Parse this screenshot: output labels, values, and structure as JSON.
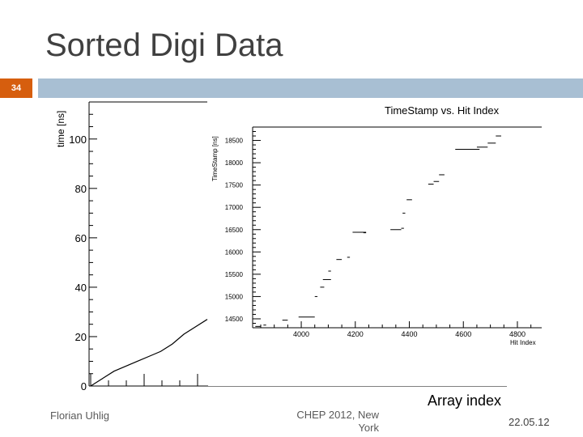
{
  "slide": {
    "title": "Sorted Digi Data",
    "number": "34",
    "footer_left": "Florian Uhlig",
    "footer_mid_line1": "CHEP 2012, New",
    "footer_mid_line2": "York",
    "footer_right": "22.05.12",
    "x_axis_title": "Array index",
    "accent_color": "#d65e0e",
    "bar_color": "#a8bfd3"
  },
  "chart_data": [
    {
      "type": "line",
      "ylabel": "time [ns]",
      "xlabel": "Array index",
      "y_ticks": [
        "0",
        "20",
        "40",
        "60",
        "80",
        "100"
      ],
      "ylim": [
        0,
        115
      ],
      "series": [
        {
          "x": [
            0,
            1,
            2,
            3,
            4,
            5,
            6,
            7,
            8,
            9,
            10
          ],
          "values": [
            0,
            3,
            6,
            8,
            10,
            12,
            14,
            17,
            21,
            24,
            27
          ]
        }
      ]
    },
    {
      "type": "scatter",
      "title": "TimeStamp vs. Hit Index",
      "xlabel": "Hit Index",
      "ylabel": "TimeStamp [ns]",
      "x_ticks": [
        "4000",
        "4200",
        "4400",
        "4600",
        "4800"
      ],
      "y_ticks": [
        "14500",
        "15000",
        "15500",
        "16000",
        "16500",
        "17000",
        "17500",
        "18000",
        "18500"
      ],
      "xlim": [
        3820,
        4890
      ],
      "ylim": [
        14300,
        18800
      ],
      "segments": [
        {
          "x0": 3830,
          "x1": 3850,
          "y": 14330
        },
        {
          "x0": 3860,
          "x1": 3870,
          "y": 14360
        },
        {
          "x0": 3930,
          "x1": 3950,
          "y": 14470
        },
        {
          "x0": 3990,
          "x1": 4050,
          "y": 14540
        },
        {
          "x0": 4050,
          "x1": 4060,
          "y": 15000
        },
        {
          "x0": 4070,
          "x1": 4085,
          "y": 15210
        },
        {
          "x0": 4080,
          "x1": 4110,
          "y": 15380
        },
        {
          "x0": 4100,
          "x1": 4110,
          "y": 15570
        },
        {
          "x0": 4130,
          "x1": 4150,
          "y": 15830
        },
        {
          "x0": 4170,
          "x1": 4180,
          "y": 15880
        },
        {
          "x0": 4190,
          "x1": 4240,
          "y": 16440
        },
        {
          "x0": 4230,
          "x1": 4240,
          "y": 16430
        },
        {
          "x0": 4330,
          "x1": 4370,
          "y": 16500
        },
        {
          "x0": 4370,
          "x1": 4380,
          "y": 16530
        },
        {
          "x0": 4375,
          "x1": 4385,
          "y": 16870
        },
        {
          "x0": 4390,
          "x1": 4410,
          "y": 17170
        },
        {
          "x0": 4470,
          "x1": 4490,
          "y": 17520
        },
        {
          "x0": 4490,
          "x1": 4510,
          "y": 17580
        },
        {
          "x0": 4510,
          "x1": 4530,
          "y": 17730
        },
        {
          "x0": 4570,
          "x1": 4660,
          "y": 18300
        },
        {
          "x0": 4650,
          "x1": 4690,
          "y": 18350
        },
        {
          "x0": 4690,
          "x1": 4720,
          "y": 18440
        },
        {
          "x0": 4720,
          "x1": 4740,
          "y": 18600
        },
        {
          "x0": 4740,
          "x1": 4750,
          "y": 18800
        }
      ]
    }
  ]
}
